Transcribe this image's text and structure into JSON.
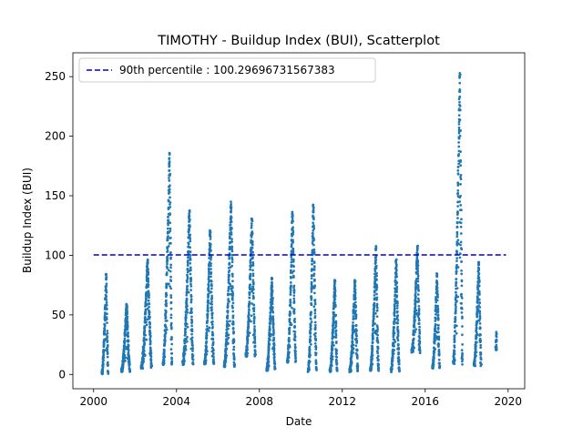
{
  "chart_data": {
    "type": "scatter",
    "title": "TIMOTHY - Buildup Index (BUI), Scatterplot",
    "xlabel": "Date",
    "ylabel": "Buildup Index (BUI)",
    "xlim": [
      1999.0,
      2020.8
    ],
    "ylim": [
      -12,
      270
    ],
    "xticks": [
      2000,
      2004,
      2008,
      2012,
      2016,
      2020
    ],
    "xtick_labels": [
      "2000",
      "2004",
      "2008",
      "2012",
      "2016",
      "2020"
    ],
    "yticks": [
      0,
      50,
      100,
      150,
      200,
      250
    ],
    "ytick_labels": [
      "0",
      "50",
      "100",
      "150",
      "200",
      "250"
    ],
    "marker_color": "#1f77b4",
    "reference_line": {
      "label": "90th percentile : 100.29696731567383",
      "value": 100.29696731567383,
      "x_range": [
        2000.0,
        2019.9
      ],
      "color": "#0000cc",
      "style": "dashed"
    },
    "legend_position": "upper left",
    "seasons": [
      {
        "year": 2000,
        "start": 2000.4,
        "end": 2000.7,
        "min": 0,
        "peak": 86
      },
      {
        "year": 2001,
        "start": 2001.35,
        "end": 2001.75,
        "min": 2,
        "peak": 60
      },
      {
        "year": 2002,
        "start": 2002.3,
        "end": 2002.8,
        "min": 5,
        "peak": 97
      },
      {
        "year": 2003,
        "start": 2003.35,
        "end": 2003.78,
        "min": 8,
        "peak": 186
      },
      {
        "year": 2004,
        "start": 2004.3,
        "end": 2004.8,
        "min": 8,
        "peak": 138
      },
      {
        "year": 2005,
        "start": 2005.35,
        "end": 2005.8,
        "min": 8,
        "peak": 121
      },
      {
        "year": 2006,
        "start": 2006.3,
        "end": 2006.8,
        "min": 6,
        "peak": 145
      },
      {
        "year": 2007,
        "start": 2007.35,
        "end": 2007.8,
        "min": 15,
        "peak": 133
      },
      {
        "year": 2008,
        "start": 2008.35,
        "end": 2008.75,
        "min": 3,
        "peak": 82
      },
      {
        "year": 2009,
        "start": 2009.35,
        "end": 2009.75,
        "min": 10,
        "peak": 138
      },
      {
        "year": 2010,
        "start": 2010.35,
        "end": 2010.75,
        "min": 2,
        "peak": 144
      },
      {
        "year": 2011,
        "start": 2011.4,
        "end": 2011.75,
        "min": 2,
        "peak": 80
      },
      {
        "year": 2012,
        "start": 2012.35,
        "end": 2012.75,
        "min": 2,
        "peak": 80
      },
      {
        "year": 2013,
        "start": 2013.35,
        "end": 2013.75,
        "min": 3,
        "peak": 108
      },
      {
        "year": 2014,
        "start": 2014.35,
        "end": 2014.75,
        "min": 2,
        "peak": 97
      },
      {
        "year": 2015,
        "start": 2015.35,
        "end": 2015.75,
        "min": 18,
        "peak": 108
      },
      {
        "year": 2016,
        "start": 2016.35,
        "end": 2016.7,
        "min": 5,
        "peak": 85
      },
      {
        "year": 2017,
        "start": 2017.35,
        "end": 2017.8,
        "min": 8,
        "peak": 257
      },
      {
        "year": 2018,
        "start": 2018.35,
        "end": 2018.7,
        "min": 7,
        "peak": 95
      },
      {
        "year": 2019,
        "start": 2019.4,
        "end": 2019.45,
        "min": 20,
        "peak": 39
      }
    ]
  }
}
